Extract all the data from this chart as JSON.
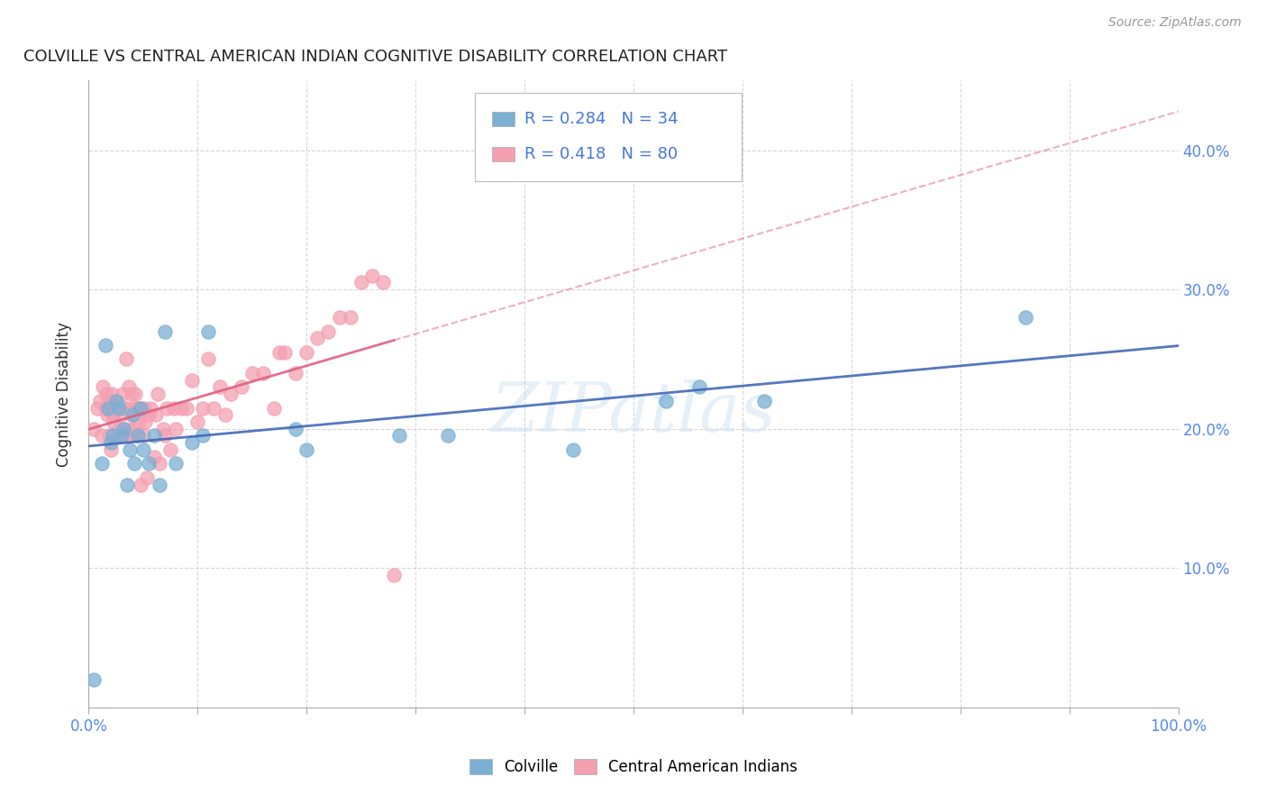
{
  "title": "COLVILLE VS CENTRAL AMERICAN INDIAN COGNITIVE DISABILITY CORRELATION CHART",
  "source": "Source: ZipAtlas.com",
  "ylabel_label": "Cognitive Disability",
  "colville_color": "#7bafd4",
  "central_american_color": "#f4a0b0",
  "colville_line_color": "#4169b8",
  "central_line_color": "#e06080",
  "colville_R": 0.284,
  "colville_N": 34,
  "central_american_R": 0.418,
  "central_american_N": 80,
  "colville_x": [
    0.005,
    0.012,
    0.015,
    0.018,
    0.02,
    0.022,
    0.025,
    0.028,
    0.03,
    0.032,
    0.035,
    0.038,
    0.04,
    0.042,
    0.045,
    0.048,
    0.05,
    0.055,
    0.06,
    0.065,
    0.07,
    0.08,
    0.095,
    0.105,
    0.11,
    0.19,
    0.2,
    0.285,
    0.33,
    0.445,
    0.53,
    0.56,
    0.62,
    0.86
  ],
  "colville_y": [
    0.02,
    0.175,
    0.26,
    0.215,
    0.19,
    0.195,
    0.22,
    0.215,
    0.195,
    0.2,
    0.16,
    0.185,
    0.21,
    0.175,
    0.195,
    0.215,
    0.185,
    0.175,
    0.195,
    0.16,
    0.27,
    0.175,
    0.19,
    0.195,
    0.27,
    0.2,
    0.185,
    0.195,
    0.195,
    0.185,
    0.22,
    0.23,
    0.22,
    0.28
  ],
  "central_x": [
    0.005,
    0.008,
    0.01,
    0.012,
    0.013,
    0.015,
    0.016,
    0.017,
    0.018,
    0.019,
    0.02,
    0.021,
    0.022,
    0.023,
    0.024,
    0.025,
    0.026,
    0.027,
    0.028,
    0.03,
    0.031,
    0.032,
    0.033,
    0.034,
    0.035,
    0.036,
    0.037,
    0.038,
    0.039,
    0.04,
    0.041,
    0.042,
    0.043,
    0.044,
    0.045,
    0.046,
    0.047,
    0.048,
    0.05,
    0.051,
    0.052,
    0.053,
    0.055,
    0.057,
    0.06,
    0.062,
    0.063,
    0.065,
    0.068,
    0.07,
    0.072,
    0.075,
    0.078,
    0.08,
    0.085,
    0.09,
    0.095,
    0.1,
    0.105,
    0.11,
    0.115,
    0.12,
    0.125,
    0.13,
    0.14,
    0.15,
    0.16,
    0.17,
    0.175,
    0.18,
    0.19,
    0.2,
    0.21,
    0.22,
    0.23,
    0.24,
    0.25,
    0.26,
    0.27,
    0.28
  ],
  "central_y": [
    0.2,
    0.215,
    0.22,
    0.195,
    0.23,
    0.215,
    0.225,
    0.21,
    0.22,
    0.195,
    0.185,
    0.225,
    0.21,
    0.205,
    0.215,
    0.22,
    0.195,
    0.215,
    0.2,
    0.21,
    0.225,
    0.195,
    0.215,
    0.25,
    0.2,
    0.215,
    0.23,
    0.195,
    0.225,
    0.21,
    0.2,
    0.215,
    0.225,
    0.195,
    0.215,
    0.205,
    0.215,
    0.16,
    0.195,
    0.215,
    0.205,
    0.165,
    0.21,
    0.215,
    0.18,
    0.21,
    0.225,
    0.175,
    0.2,
    0.195,
    0.215,
    0.185,
    0.215,
    0.2,
    0.215,
    0.215,
    0.235,
    0.205,
    0.215,
    0.25,
    0.215,
    0.23,
    0.21,
    0.225,
    0.23,
    0.24,
    0.24,
    0.215,
    0.255,
    0.255,
    0.24,
    0.255,
    0.265,
    0.27,
    0.28,
    0.28,
    0.305,
    0.31,
    0.305,
    0.095
  ],
  "xlim": [
    0.0,
    1.0
  ],
  "ylim": [
    0.0,
    0.45
  ],
  "ytick_vals": [
    0.1,
    0.2,
    0.3,
    0.4
  ],
  "ytick_labels": [
    "10.0%",
    "20.0%",
    "30.0%",
    "40.0%"
  ],
  "xtick_vals": [
    0.0,
    0.1,
    0.2,
    0.3,
    0.4,
    0.5,
    0.6,
    0.7,
    0.8,
    0.9,
    1.0
  ],
  "xtick_show": [
    "0.0%",
    "",
    "",
    "",
    "",
    "",
    "",
    "",
    "",
    "",
    "100.0%"
  ]
}
